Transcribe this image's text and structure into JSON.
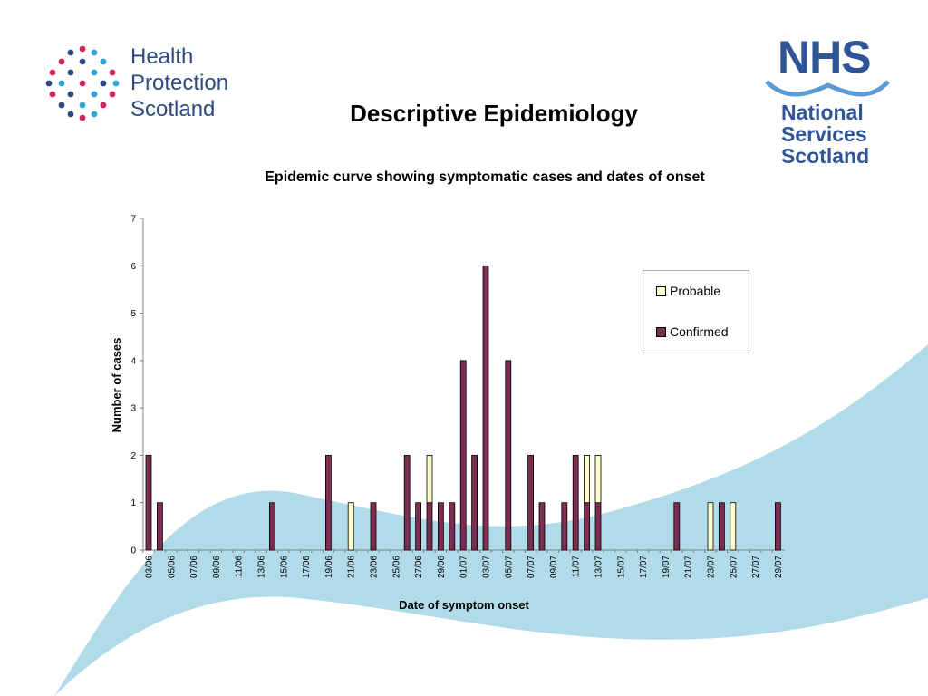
{
  "header": {
    "hps_logo": {
      "lines": [
        "Health",
        "Protection",
        "Scotland"
      ],
      "icon": "dot-cluster-logo"
    },
    "nhs_logo": {
      "mark": "NHS",
      "lines": [
        "National",
        "Services",
        "Scotland"
      ],
      "icon": "nhs-wave-logo"
    },
    "title": "Descriptive Epidemiology"
  },
  "colors": {
    "confirmed": "#7b2d52",
    "probable": "#ffffcc",
    "background_swoosh": "#a9d7e6",
    "logo_blue": "#2f5597"
  },
  "chart_data": {
    "type": "bar",
    "stacked": true,
    "title": "Epidemic curve showing symptomatic cases and dates of onset",
    "xlabel": "Date of symptom onset",
    "ylabel": "Number of cases",
    "ylim": [
      0,
      7
    ],
    "yticks": [
      0,
      1,
      2,
      3,
      4,
      5,
      6,
      7
    ],
    "grid": false,
    "legend_position": "top-right",
    "x_start": "03/06",
    "x_end": "29/07",
    "xtick_labels": [
      "03/06",
      "05/06",
      "07/06",
      "09/06",
      "11/06",
      "13/06",
      "15/06",
      "17/06",
      "19/06",
      "21/06",
      "23/06",
      "25/06",
      "27/06",
      "29/06",
      "01/07",
      "03/07",
      "05/07",
      "07/07",
      "09/07",
      "11/07",
      "13/07",
      "15/07",
      "17/07",
      "19/07",
      "21/07",
      "23/07",
      "25/07",
      "27/07",
      "29/07"
    ],
    "series": [
      {
        "name": "Confirmed",
        "color": "#7b2d52",
        "points": [
          {
            "x": "03/06",
            "y": 2
          },
          {
            "x": "04/06",
            "y": 1
          },
          {
            "x": "14/06",
            "y": 1
          },
          {
            "x": "19/06",
            "y": 2
          },
          {
            "x": "23/06",
            "y": 1
          },
          {
            "x": "26/06",
            "y": 2
          },
          {
            "x": "27/06",
            "y": 1
          },
          {
            "x": "28/06",
            "y": 1
          },
          {
            "x": "29/06",
            "y": 1
          },
          {
            "x": "30/06",
            "y": 1
          },
          {
            "x": "01/07",
            "y": 4
          },
          {
            "x": "02/07",
            "y": 2
          },
          {
            "x": "03/07",
            "y": 6
          },
          {
            "x": "05/07",
            "y": 4
          },
          {
            "x": "07/07",
            "y": 2
          },
          {
            "x": "08/07",
            "y": 1
          },
          {
            "x": "10/07",
            "y": 1
          },
          {
            "x": "11/07",
            "y": 2
          },
          {
            "x": "12/07",
            "y": 1
          },
          {
            "x": "13/07",
            "y": 1
          },
          {
            "x": "20/07",
            "y": 1
          },
          {
            "x": "24/07",
            "y": 1
          },
          {
            "x": "29/07",
            "y": 1
          }
        ]
      },
      {
        "name": "Probable",
        "color": "#ffffcc",
        "points": [
          {
            "x": "21/06",
            "y": 1
          },
          {
            "x": "28/06",
            "y": 1
          },
          {
            "x": "12/07",
            "y": 1
          },
          {
            "x": "13/07",
            "y": 1
          },
          {
            "x": "23/07",
            "y": 1
          },
          {
            "x": "25/07",
            "y": 1
          }
        ]
      }
    ]
  }
}
